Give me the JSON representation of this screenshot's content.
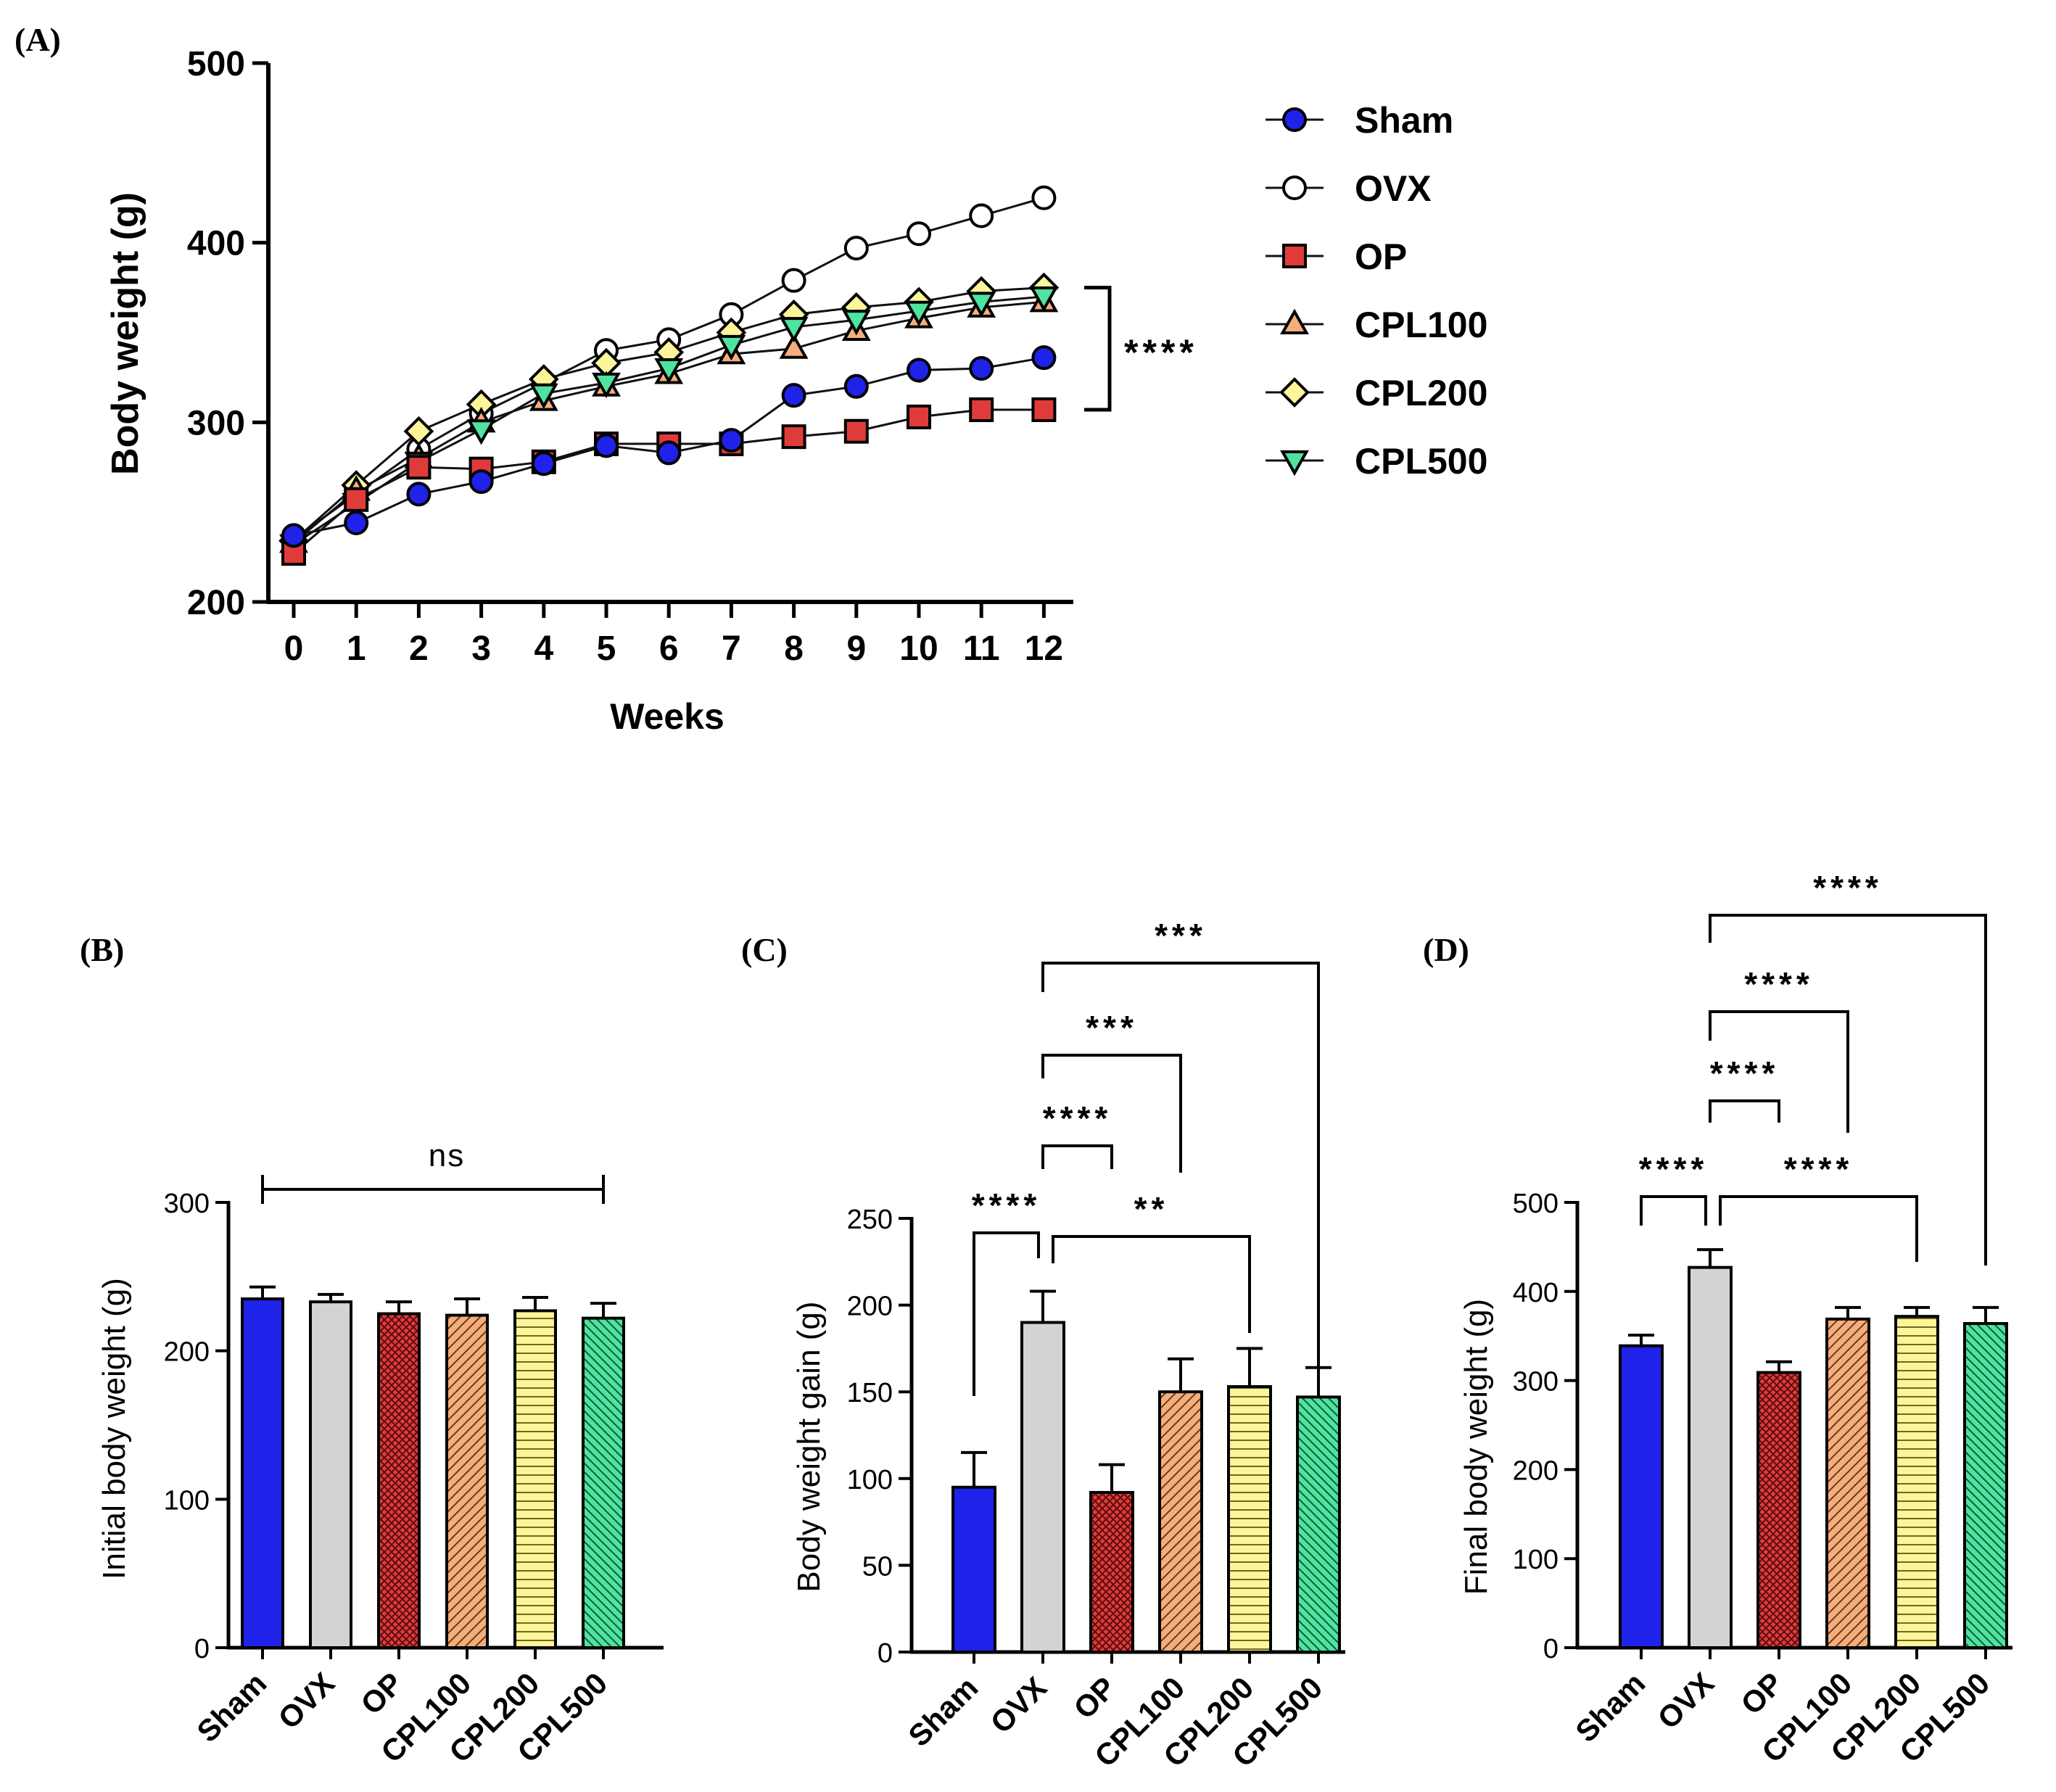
{
  "groups": [
    "Sham",
    "OVX",
    "OP",
    "CPL100",
    "CPL200",
    "CPL500"
  ],
  "colors": {
    "Sham": "#1f22e8",
    "OVX": "#d3d3d3",
    "OP": "#e03b3b",
    "CPL100": "#f4ae7e",
    "CPL200": "#fdf59a",
    "CPL500": "#4fe3a0",
    "axis": "#000000"
  },
  "chart_data": [
    {
      "panel": "(A)",
      "type": "line",
      "xlabel": "Weeks",
      "ylabel": "Body weight (g)",
      "ylim": [
        200,
        500
      ],
      "yticks": [
        200,
        300,
        400,
        500
      ],
      "x": [
        0,
        1,
        2,
        3,
        4,
        5,
        6,
        7,
        8,
        9,
        10,
        11,
        12
      ],
      "series": [
        {
          "name": "Sham",
          "marker": "circle-filled",
          "values": [
            237,
            244,
            260,
            267,
            277,
            287,
            283,
            290,
            315,
            320,
            329,
            330,
            336
          ]
        },
        {
          "name": "OVX",
          "marker": "circle-open",
          "values": [
            235,
            260,
            285,
            305,
            322,
            340,
            346,
            360,
            379,
            397,
            405,
            415,
            425
          ]
        },
        {
          "name": "OP",
          "marker": "square",
          "values": [
            227,
            257,
            275,
            274,
            278,
            288,
            288,
            288,
            292,
            295,
            303,
            307,
            307
          ]
        },
        {
          "name": "CPL100",
          "marker": "triangle-up",
          "values": [
            233,
            262,
            280,
            300,
            312,
            320,
            327,
            338,
            341,
            351,
            358,
            364,
            367
          ]
        },
        {
          "name": "CPL200",
          "marker": "diamond",
          "values": [
            234,
            265,
            295,
            310,
            324,
            333,
            339,
            350,
            360,
            364,
            367,
            373,
            375
          ]
        },
        {
          "name": "CPL500",
          "marker": "triangle-down",
          "values": [
            232,
            255,
            278,
            296,
            316,
            322,
            330,
            343,
            353,
            357,
            362,
            367,
            370
          ]
        }
      ],
      "annotation": "****"
    },
    {
      "panel": "(B)",
      "type": "bar",
      "ylabel": "Initial body weight (g)",
      "ylim": [
        0,
        300
      ],
      "yticks": [
        0,
        100,
        200,
        300
      ],
      "categories": [
        "Sham",
        "OVX",
        "OP",
        "CPL100",
        "CPL200",
        "CPL500"
      ],
      "values": [
        235,
        233,
        225,
        224,
        227,
        222
      ],
      "errors": [
        8,
        5,
        8,
        11,
        9,
        10
      ],
      "annotations": [
        {
          "text": "ns",
          "from": "Sham",
          "to": "CPL500"
        }
      ]
    },
    {
      "panel": "(C)",
      "type": "bar",
      "ylabel": "Body weight gain (g)",
      "ylim": [
        0,
        250
      ],
      "yticks": [
        0,
        50,
        100,
        150,
        200,
        250
      ],
      "categories": [
        "Sham",
        "OVX",
        "OP",
        "CPL100",
        "CPL200",
        "CPL500"
      ],
      "values": [
        95,
        190,
        92,
        150,
        153,
        147
      ],
      "errors": [
        20,
        18,
        16,
        19,
        22,
        17
      ],
      "annotations": [
        {
          "text": "****",
          "from": "Sham",
          "to": "OVX"
        },
        {
          "text": "**",
          "from": "OVX",
          "to": "CPL200"
        },
        {
          "text": "****",
          "from": "OVX",
          "to": "OP"
        },
        {
          "text": "***",
          "from": "OVX",
          "to": "CPL100"
        },
        {
          "text": "***",
          "from": "OVX",
          "to": "CPL500"
        }
      ]
    },
    {
      "panel": "(D)",
      "type": "bar",
      "ylabel": "Final body weight (g)",
      "ylim": [
        0,
        500
      ],
      "yticks": [
        0,
        100,
        200,
        300,
        400,
        500
      ],
      "categories": [
        "Sham",
        "OVX",
        "OP",
        "CPL100",
        "CPL200",
        "CPL500"
      ],
      "values": [
        339,
        427,
        309,
        369,
        372,
        364
      ],
      "errors": [
        12,
        20,
        12,
        13,
        10,
        18
      ],
      "annotations": [
        {
          "text": "****",
          "from": "Sham",
          "to": "OVX"
        },
        {
          "text": "****",
          "from": "OVX",
          "to": "CPL200"
        },
        {
          "text": "****",
          "from": "OVX",
          "to": "OP"
        },
        {
          "text": "****",
          "from": "OVX",
          "to": "CPL100"
        },
        {
          "text": "****",
          "from": "OVX",
          "to": "CPL500"
        }
      ]
    }
  ]
}
